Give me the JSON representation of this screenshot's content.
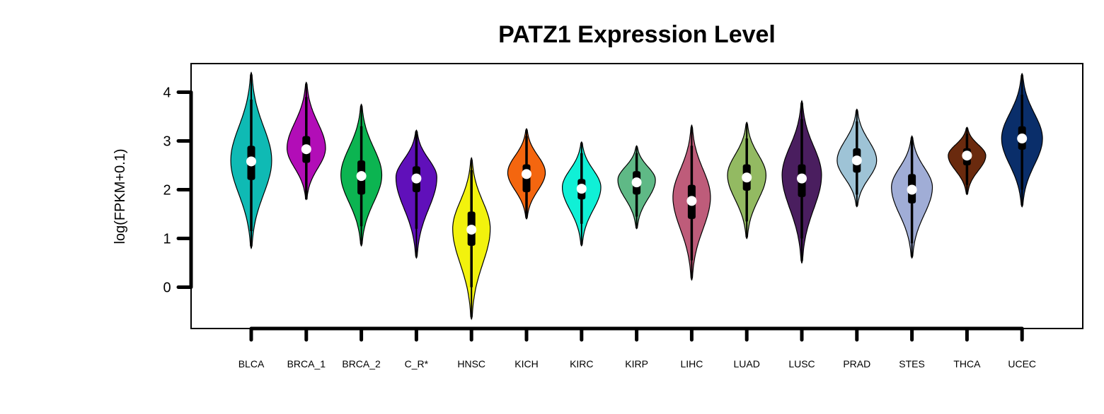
{
  "chart_data": {
    "type": "violin",
    "title": "PATZ1 Expression Level",
    "ylabel": "log(FPKM+0.1)",
    "ylim": [
      -0.85,
      4.6
    ],
    "yticks": [
      0,
      1,
      2,
      3,
      4
    ],
    "categories": [
      "BLCA",
      "BRCA_1",
      "BRCA_2",
      "C_R*",
      "HNSC",
      "KICH",
      "KIRC",
      "KIRP",
      "LIHC",
      "LUAD",
      "LUSC",
      "PRAD",
      "STES",
      "THCA",
      "UCEC"
    ],
    "series": [
      {
        "category": "BLCA",
        "color": "#0FBAB4",
        "min": 0.8,
        "max": 4.4,
        "q1": 2.2,
        "median": 2.58,
        "q3": 2.9,
        "w_lo": 1.15,
        "w_hi": 3.85,
        "peak": 2.6,
        "width": 0.85
      },
      {
        "category": "BRCA_1",
        "color": "#B20DB7",
        "min": 1.8,
        "max": 4.2,
        "q1": 2.55,
        "median": 2.83,
        "q3": 3.1,
        "w_lo": 1.8,
        "w_hi": 3.9,
        "peak": 2.85,
        "width": 0.8
      },
      {
        "category": "BRCA_2",
        "color": "#0CB451",
        "min": 0.85,
        "max": 3.75,
        "q1": 1.9,
        "median": 2.28,
        "q3": 2.6,
        "w_lo": 1.25,
        "w_hi": 3.3,
        "peak": 2.3,
        "width": 0.85
      },
      {
        "category": "C_R*",
        "color": "#6010BA",
        "min": 0.6,
        "max": 3.22,
        "q1": 1.95,
        "median": 2.23,
        "q3": 2.48,
        "w_lo": 1.2,
        "w_hi": 3.2,
        "peak": 2.25,
        "width": 0.85
      },
      {
        "category": "HNSC",
        "color": "#F2F20D",
        "min": -0.65,
        "max": 2.65,
        "q1": 0.85,
        "median": 1.18,
        "q3": 1.55,
        "w_lo": 0.0,
        "w_hi": 2.4,
        "peak": 1.2,
        "width": 0.78
      },
      {
        "category": "KICH",
        "color": "#F4660F",
        "min": 1.4,
        "max": 3.25,
        "q1": 1.95,
        "median": 2.32,
        "q3": 2.52,
        "w_lo": 1.45,
        "w_hi": 3.1,
        "peak": 2.35,
        "width": 0.78
      },
      {
        "category": "KIRC",
        "color": "#10F0D6",
        "min": 0.85,
        "max": 2.98,
        "q1": 1.8,
        "median": 2.02,
        "q3": 2.22,
        "w_lo": 1.3,
        "w_hi": 2.75,
        "peak": 2.05,
        "width": 0.8
      },
      {
        "category": "KIRP",
        "color": "#5FB986",
        "min": 1.2,
        "max": 2.9,
        "q1": 1.9,
        "median": 2.15,
        "q3": 2.38,
        "w_lo": 1.45,
        "w_hi": 2.75,
        "peak": 2.2,
        "width": 0.78
      },
      {
        "category": "LIHC",
        "color": "#BE5C7A",
        "min": 0.15,
        "max": 3.32,
        "q1": 1.4,
        "median": 1.77,
        "q3": 2.1,
        "w_lo": 0.55,
        "w_hi": 2.9,
        "peak": 1.85,
        "width": 0.78
      },
      {
        "category": "LUAD",
        "color": "#93BA62",
        "min": 1.0,
        "max": 3.38,
        "q1": 1.98,
        "median": 2.25,
        "q3": 2.52,
        "w_lo": 1.35,
        "w_hi": 3.05,
        "peak": 2.3,
        "width": 0.8
      },
      {
        "category": "LUSC",
        "color": "#4A1E5F",
        "min": 0.5,
        "max": 3.82,
        "q1": 1.85,
        "median": 2.23,
        "q3": 2.52,
        "w_lo": 1.0,
        "w_hi": 3.45,
        "peak": 2.3,
        "width": 0.82
      },
      {
        "category": "PRAD",
        "color": "#9EC3D6",
        "min": 1.65,
        "max": 3.65,
        "q1": 2.35,
        "median": 2.6,
        "q3": 2.85,
        "w_lo": 1.9,
        "w_hi": 3.4,
        "peak": 2.6,
        "width": 0.82
      },
      {
        "category": "STES",
        "color": "#A0ADD6",
        "min": 0.6,
        "max": 3.1,
        "q1": 1.72,
        "median": 2.0,
        "q3": 2.32,
        "w_lo": 0.9,
        "w_hi": 3.0,
        "peak": 2.05,
        "width": 0.85
      },
      {
        "category": "THCA",
        "color": "#6A2A0E",
        "min": 1.9,
        "max": 3.28,
        "q1": 2.5,
        "median": 2.7,
        "q3": 2.85,
        "w_lo": 2.1,
        "w_hi": 3.15,
        "peak": 2.7,
        "width": 0.78
      },
      {
        "category": "UCEC",
        "color": "#0A2E6A",
        "min": 1.65,
        "max": 4.38,
        "q1": 2.82,
        "median": 3.05,
        "q3": 3.3,
        "w_lo": 2.0,
        "w_hi": 3.95,
        "peak": 3.05,
        "width": 0.85
      }
    ]
  }
}
